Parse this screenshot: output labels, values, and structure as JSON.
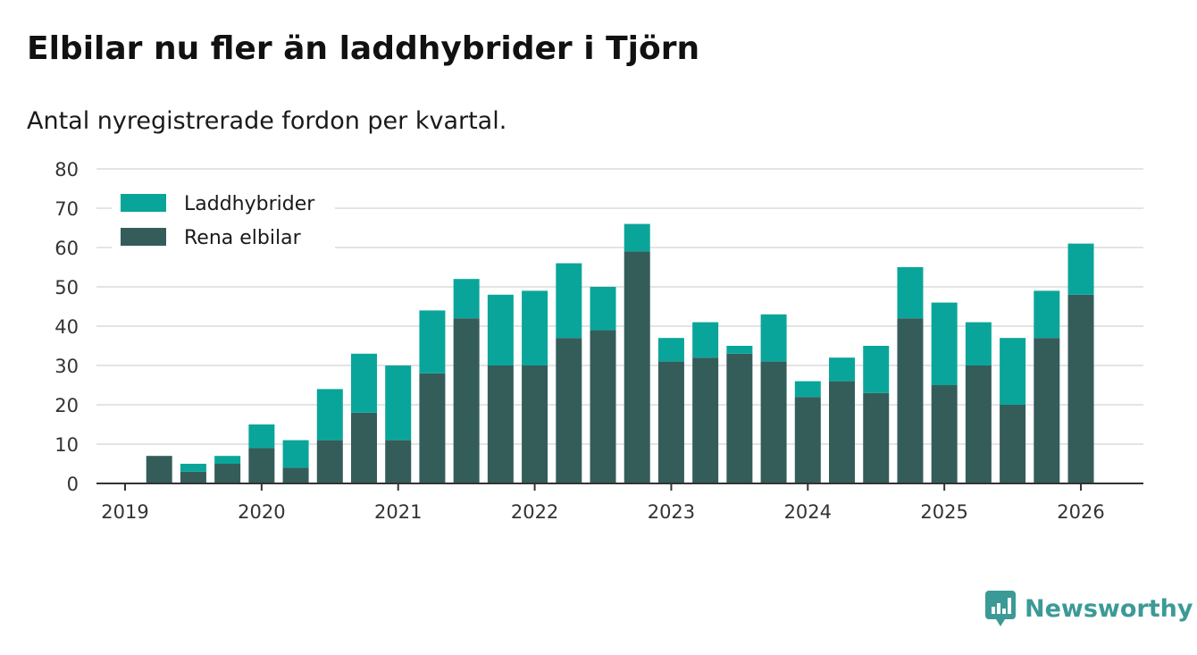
{
  "header": {
    "title": "Elbilar nu fler än laddhybrider i Tjörn",
    "subtitle": "Antal nyregistrerade fordon per kvartal."
  },
  "brand": {
    "name": "Newsworthy",
    "color": "#3c9a96"
  },
  "colors": {
    "laddhybrider": "#0aa59a",
    "rena_elbilar": "#345d5a",
    "grid": "#dcdcdc",
    "axis": "#333333"
  },
  "chart_data": {
    "type": "bar",
    "stacked": true,
    "title": "Elbilar nu fler än laddhybrider i Tjörn",
    "subtitle": "Antal nyregistrerade fordon per kvartal.",
    "xlabel": "",
    "ylabel": "",
    "ylim": [
      0,
      80
    ],
    "yticks": [
      0,
      10,
      20,
      30,
      40,
      50,
      60,
      70,
      80
    ],
    "xticks": [
      "2019",
      "2020",
      "2021",
      "2022",
      "2023",
      "2024",
      "2025",
      "2026"
    ],
    "grid": true,
    "legend_position": "top-left",
    "categories": [
      "2019 Q1",
      "2019 Q2",
      "2019 Q3",
      "2019 Q4",
      "2020 Q1",
      "2020 Q2",
      "2020 Q3",
      "2020 Q4",
      "2021 Q1",
      "2021 Q2",
      "2021 Q3",
      "2021 Q4",
      "2022 Q1",
      "2022 Q2",
      "2022 Q3",
      "2022 Q4",
      "2023 Q1",
      "2023 Q2",
      "2023 Q3",
      "2023 Q4",
      "2024 Q1",
      "2024 Q2",
      "2024 Q3",
      "2024 Q4",
      "2025 Q1",
      "2025 Q2",
      "2025 Q3",
      "2025 Q4"
    ],
    "series": [
      {
        "name": "Rena elbilar",
        "color": "#345d5a",
        "values": [
          7,
          3,
          5,
          9,
          4,
          11,
          18,
          11,
          28,
          42,
          30,
          30,
          37,
          39,
          59,
          31,
          32,
          33,
          31,
          22,
          26,
          23,
          42,
          25,
          30,
          20,
          37,
          48
        ]
      },
      {
        "name": "Laddhybrider",
        "color": "#0aa59a",
        "values": [
          0,
          2,
          2,
          6,
          7,
          13,
          15,
          19,
          16,
          10,
          18,
          19,
          19,
          11,
          7,
          6,
          9,
          2,
          12,
          4,
          6,
          12,
          13,
          21,
          11,
          17,
          12,
          13
        ]
      }
    ],
    "legend": [
      "Laddhybrider",
      "Rena elbilar"
    ]
  }
}
